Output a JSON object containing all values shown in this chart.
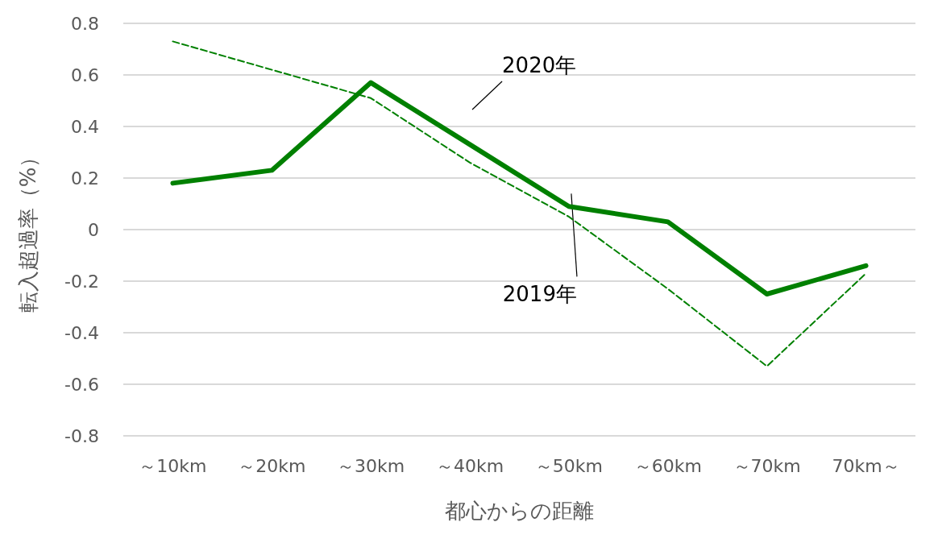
{
  "chart_data": {
    "type": "line",
    "xlabel": "都心からの距離",
    "ylabel": "転入超過率（%）",
    "categories": [
      "～10km",
      "～20km",
      "～30km",
      "～40km",
      "～50km",
      "～60km",
      "～70km",
      "70km～"
    ],
    "series": [
      {
        "name": "2020年",
        "color": "#008000",
        "line_style": "solid",
        "values": [
          0.18,
          0.23,
          0.57,
          0.33,
          0.09,
          0.03,
          -0.25,
          -0.14
        ]
      },
      {
        "name": "2019年",
        "color": "#008000",
        "line_style": "dashed",
        "values": [
          0.73,
          0.62,
          0.51,
          0.26,
          0.05,
          -0.23,
          -0.53,
          -0.17
        ]
      }
    ],
    "ylim": [
      -0.8,
      0.8
    ],
    "yticks": [
      -0.8,
      -0.6,
      -0.4,
      -0.2,
      0,
      0.2,
      0.4,
      0.6,
      0.8
    ],
    "grid": "y",
    "marker": "none",
    "legend": false
  }
}
